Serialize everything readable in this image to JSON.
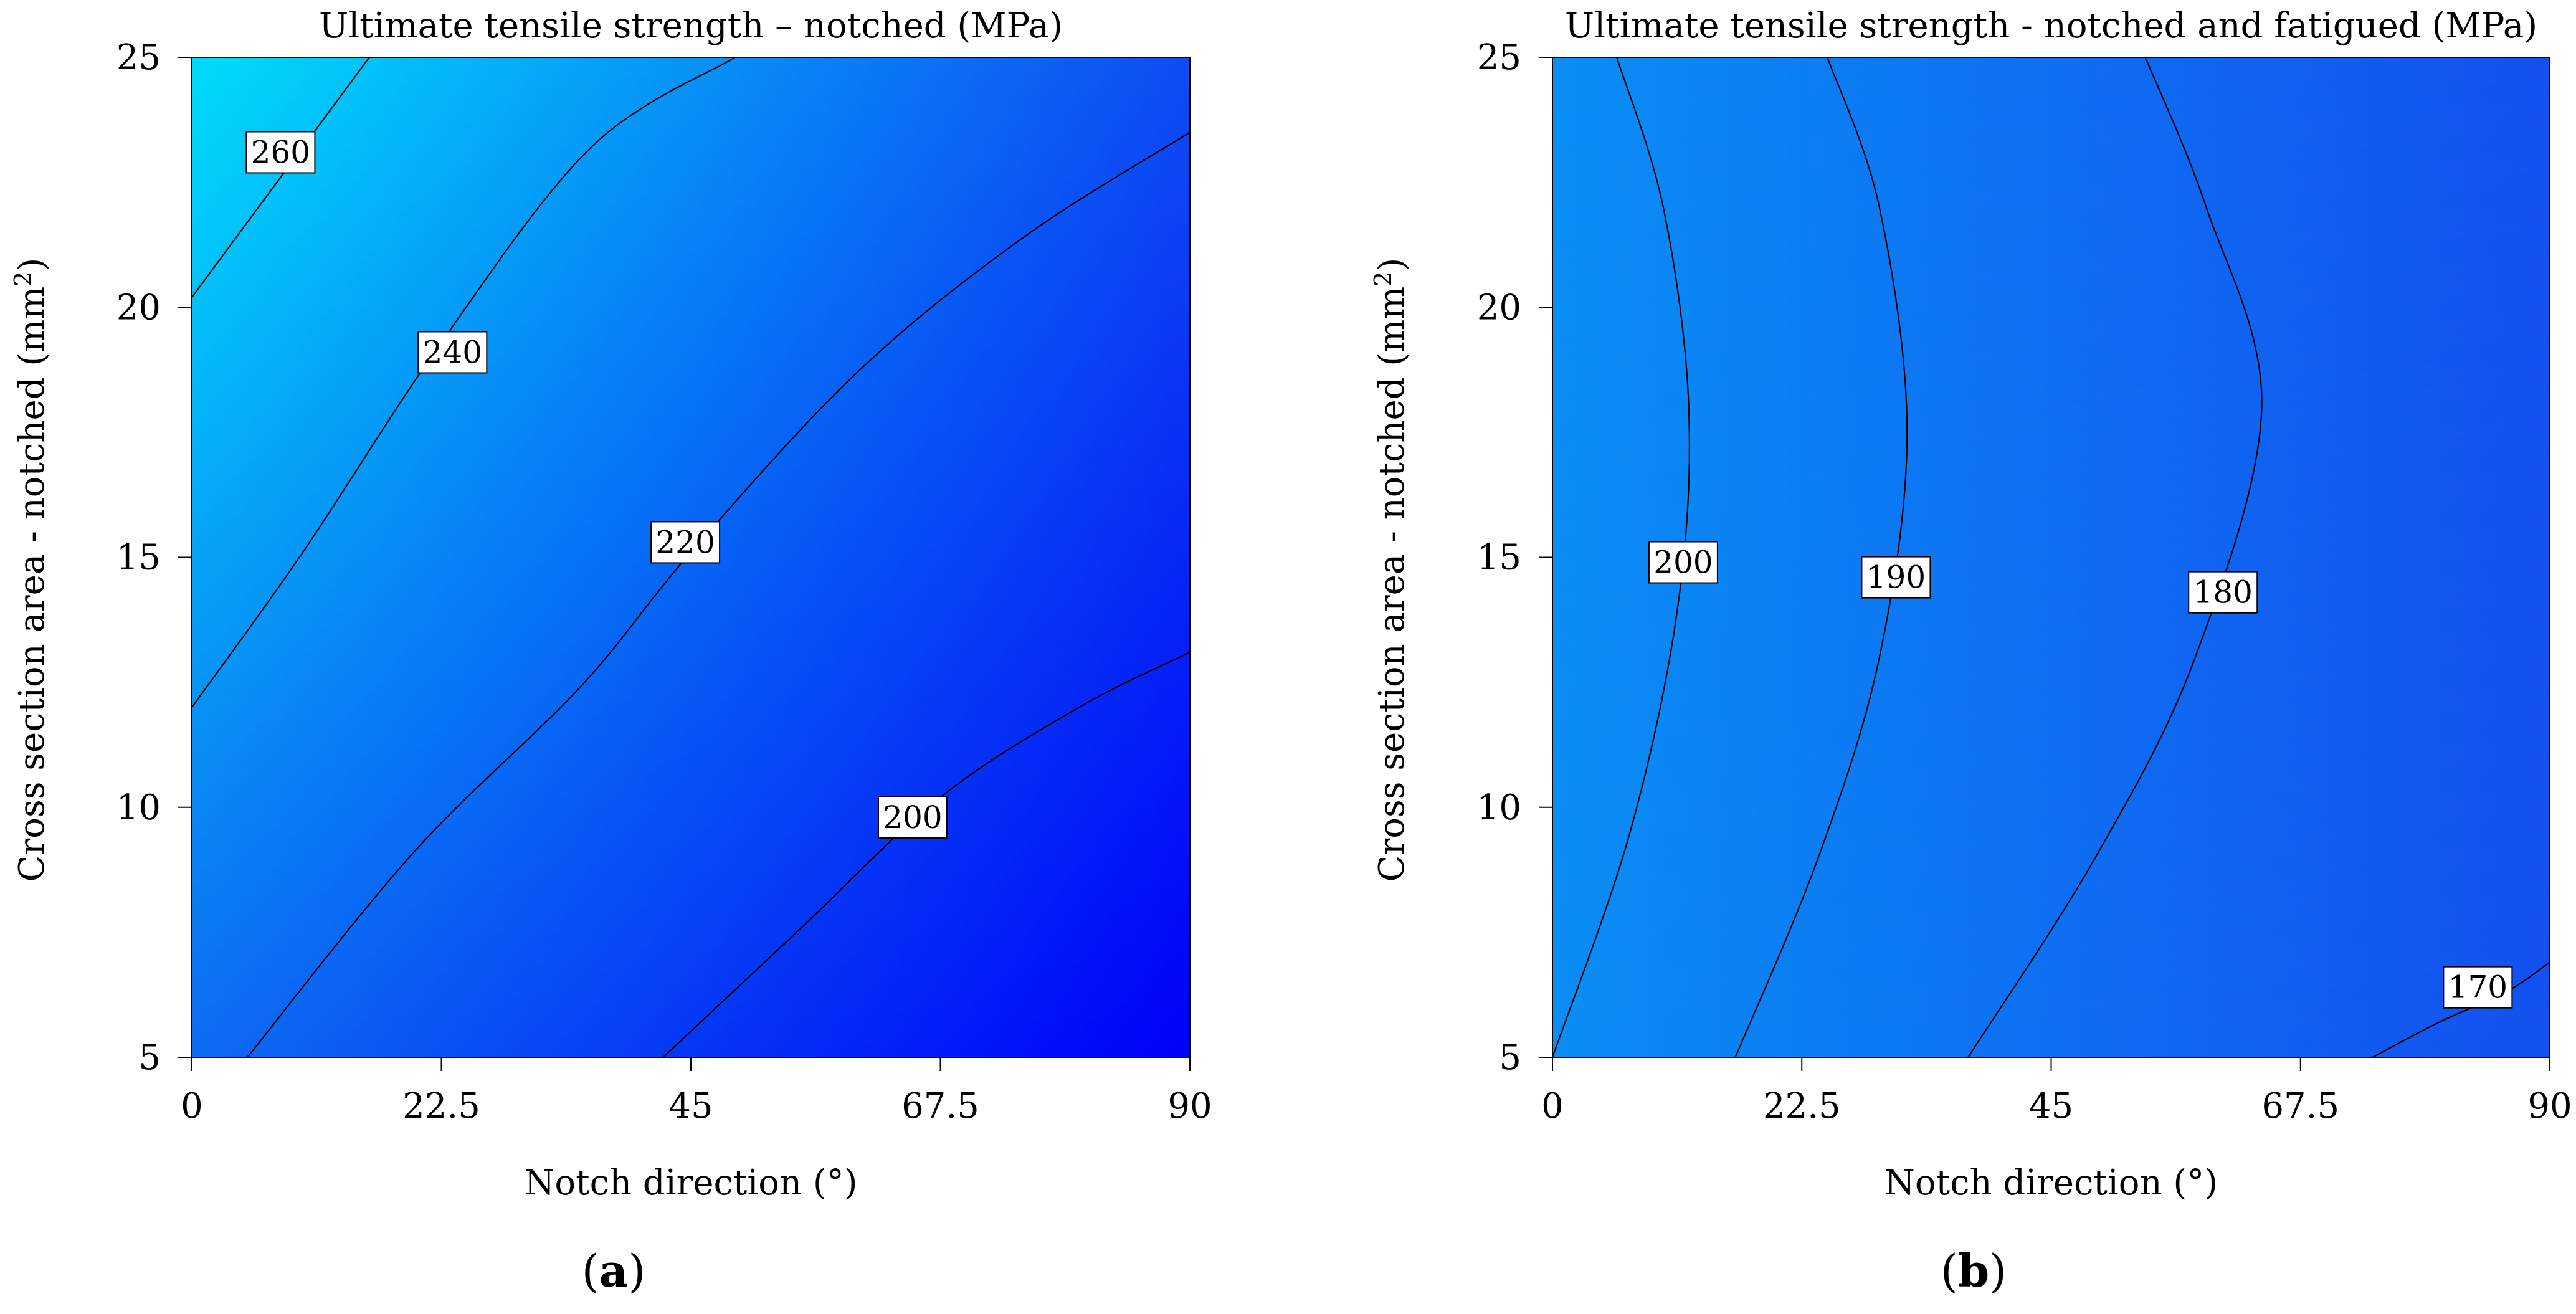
{
  "chart_data": [
    {
      "type": "contour",
      "panel_label": "a",
      "title": "Ultimate tensile strength –  notched (MPa)",
      "xlabel": "Notch direction (°)",
      "ylabel": "Cross section area  -  notched (mm",
      "ylabel_sup": "2",
      "ylabel_close": ")",
      "xlim": [
        0,
        90
      ],
      "ylim": [
        5,
        25
      ],
      "xticks": [
        "0",
        "22.5",
        "45",
        "67.5",
        "90"
      ],
      "xtick_values": [
        0,
        22.5,
        45,
        67.5,
        90
      ],
      "yticks": [
        "5",
        "10",
        "15",
        "20",
        "25"
      ],
      "ytick_values": [
        5,
        10,
        15,
        20,
        25
      ],
      "color_corners": {
        "x0y5": "#0f6cf3",
        "x90y5": "#0000fa",
        "x0y25": "#00dcfa",
        "x90y25": "#0f4cf3"
      },
      "contours": [
        {
          "level": "260",
          "points": [
            [
              0,
              20.2
            ],
            [
              8,
              22.6
            ],
            [
              16,
              25
            ]
          ],
          "label_at": [
            8,
            23.1
          ]
        },
        {
          "level": "240",
          "points": [
            [
              0,
              12
            ],
            [
              10,
              15.1
            ],
            [
              22.5,
              19.3
            ],
            [
              36,
              23.2
            ],
            [
              49,
              25
            ]
          ],
          "label_at": [
            23.5,
            19.1
          ]
        },
        {
          "level": "220",
          "points": [
            [
              5,
              5
            ],
            [
              20,
              9.1
            ],
            [
              35,
              12.4
            ],
            [
              45,
              15.1
            ],
            [
              60,
              18.7
            ],
            [
              75,
              21.4
            ],
            [
              90,
              23.5
            ]
          ],
          "label_at": [
            44.5,
            15.3
          ]
        },
        {
          "level": "200",
          "points": [
            [
              42.5,
              5
            ],
            [
              55,
              7.6
            ],
            [
              67.5,
              10.2
            ],
            [
              80,
              12
            ],
            [
              90,
              13.1
            ]
          ],
          "label_at": [
            65,
            9.8
          ]
        }
      ]
    },
    {
      "type": "contour",
      "panel_label": "b",
      "title": "Ultimate tensile strength  -  notched and fatigued (MPa)",
      "xlabel": "Notch direction (°)",
      "ylabel": "Cross section area  -  notched (mm",
      "ylabel_sup": "2",
      "ylabel_close": ")",
      "xlim": [
        0,
        90
      ],
      "ylim": [
        5,
        25
      ],
      "xticks": [
        "0",
        "22.5",
        "45",
        "67.5",
        "90"
      ],
      "xtick_values": [
        0,
        22.5,
        45,
        67.5,
        90
      ],
      "yticks": [
        "5",
        "10",
        "15",
        "20",
        "25"
      ],
      "ytick_values": [
        5,
        10,
        15,
        20,
        25
      ],
      "color_corners": {
        "x0y5": "#0a8ef5",
        "x90y5": "#1450f0",
        "x0y25": "#0a8ef5",
        "x90y25": "#1450f0"
      },
      "contours": [
        {
          "level": "200",
          "points": [
            [
              0,
              5
            ],
            [
              7,
              9.5
            ],
            [
              11.3,
              14
            ],
            [
              12.3,
              18
            ],
            [
              10,
              22
            ],
            [
              5.8,
              25
            ]
          ],
          "label_at": [
            11.8,
            14.9
          ]
        },
        {
          "level": "190",
          "points": [
            [
              16.5,
              5
            ],
            [
              24,
              9
            ],
            [
              29.5,
              13
            ],
            [
              32,
              17.5
            ],
            [
              29.5,
              22
            ],
            [
              24.8,
              25
            ]
          ],
          "label_at": [
            31,
            14.6
          ]
        },
        {
          "level": "180",
          "points": [
            [
              37.5,
              5
            ],
            [
              49,
              9
            ],
            [
              58,
              13
            ],
            [
              64,
              18
            ],
            [
              59,
              22
            ],
            [
              53.5,
              25
            ]
          ],
          "label_at": [
            60.5,
            14.3
          ]
        },
        {
          "level": "170",
          "points": [
            [
              74,
              5
            ],
            [
              80,
              5.7
            ],
            [
              86,
              6.3
            ],
            [
              90,
              6.9
            ]
          ],
          "label_at": [
            83.5,
            6.4
          ]
        }
      ]
    }
  ]
}
